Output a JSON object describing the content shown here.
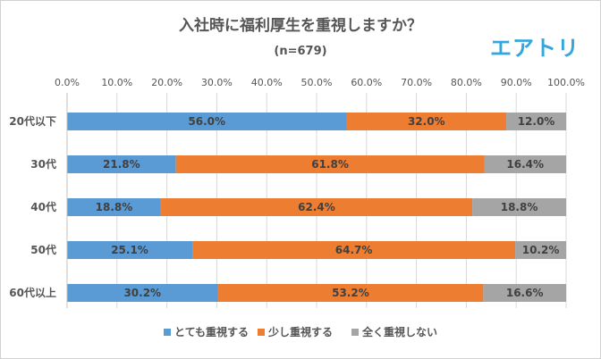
{
  "title": "入社時に福利厚生を重視しますか？",
  "subtitle": "(n=679)",
  "logo_text": "エアトリ",
  "colors": {
    "series1": "#5b9bd5",
    "series2": "#ed7d31",
    "series3": "#a5a5a5"
  },
  "chart_data": {
    "type": "bar",
    "orientation": "horizontal",
    "stacked": "percent",
    "title": "入社時に福利厚生を重視しますか？",
    "subtitle": "(n=679)",
    "categories": [
      "20代以下",
      "30代",
      "40代",
      "50代",
      "60代以上"
    ],
    "series": [
      {
        "name": "とても重視する",
        "values": [
          56.0,
          21.8,
          18.8,
          25.1,
          30.2
        ],
        "labels": [
          "56.0%",
          "21.8%",
          "18.8%",
          "25.1%",
          "30.2%"
        ]
      },
      {
        "name": "少し重視する",
        "values": [
          32.0,
          61.8,
          62.4,
          64.7,
          53.2
        ],
        "labels": [
          "32.0%",
          "61.8%",
          "62.4%",
          "64.7%",
          "53.2%"
        ]
      },
      {
        "name": "全く重視しない",
        "values": [
          12.0,
          16.4,
          18.8,
          10.2,
          16.6
        ],
        "labels": [
          "12.0%",
          "16.4%",
          "18.8%",
          "10.2%",
          "16.6%"
        ]
      }
    ],
    "xlim": [
      0,
      100
    ],
    "ticks": [
      "0.0%",
      "10.0%",
      "20.0%",
      "30.0%",
      "40.0%",
      "50.0%",
      "60.0%",
      "70.0%",
      "80.0%",
      "90.0%",
      "100.0%"
    ],
    "grid": true,
    "legend": "bottom"
  }
}
